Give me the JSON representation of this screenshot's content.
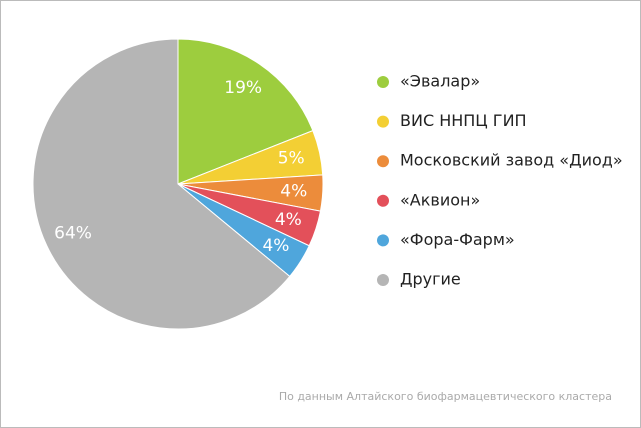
{
  "chart_data": {
    "type": "pie",
    "categories": [
      "«Эвалар»",
      "ВИС ННПЦ ГИП",
      "Московский завод «Диод»",
      "«Аквион»",
      "«Фора-Фарм»",
      "Другие"
    ],
    "values": [
      19,
      5,
      4,
      4,
      4,
      64
    ],
    "value_labels": [
      "19%",
      "5%",
      "4%",
      "4%",
      "4%",
      "64%"
    ],
    "colors": [
      "#9dcd3e",
      "#f3cf34",
      "#ec8c3b",
      "#e3505a",
      "#4fa6dc",
      "#b5b5b5"
    ],
    "source": "По данным Алтайского биофармацевтического кластера"
  }
}
